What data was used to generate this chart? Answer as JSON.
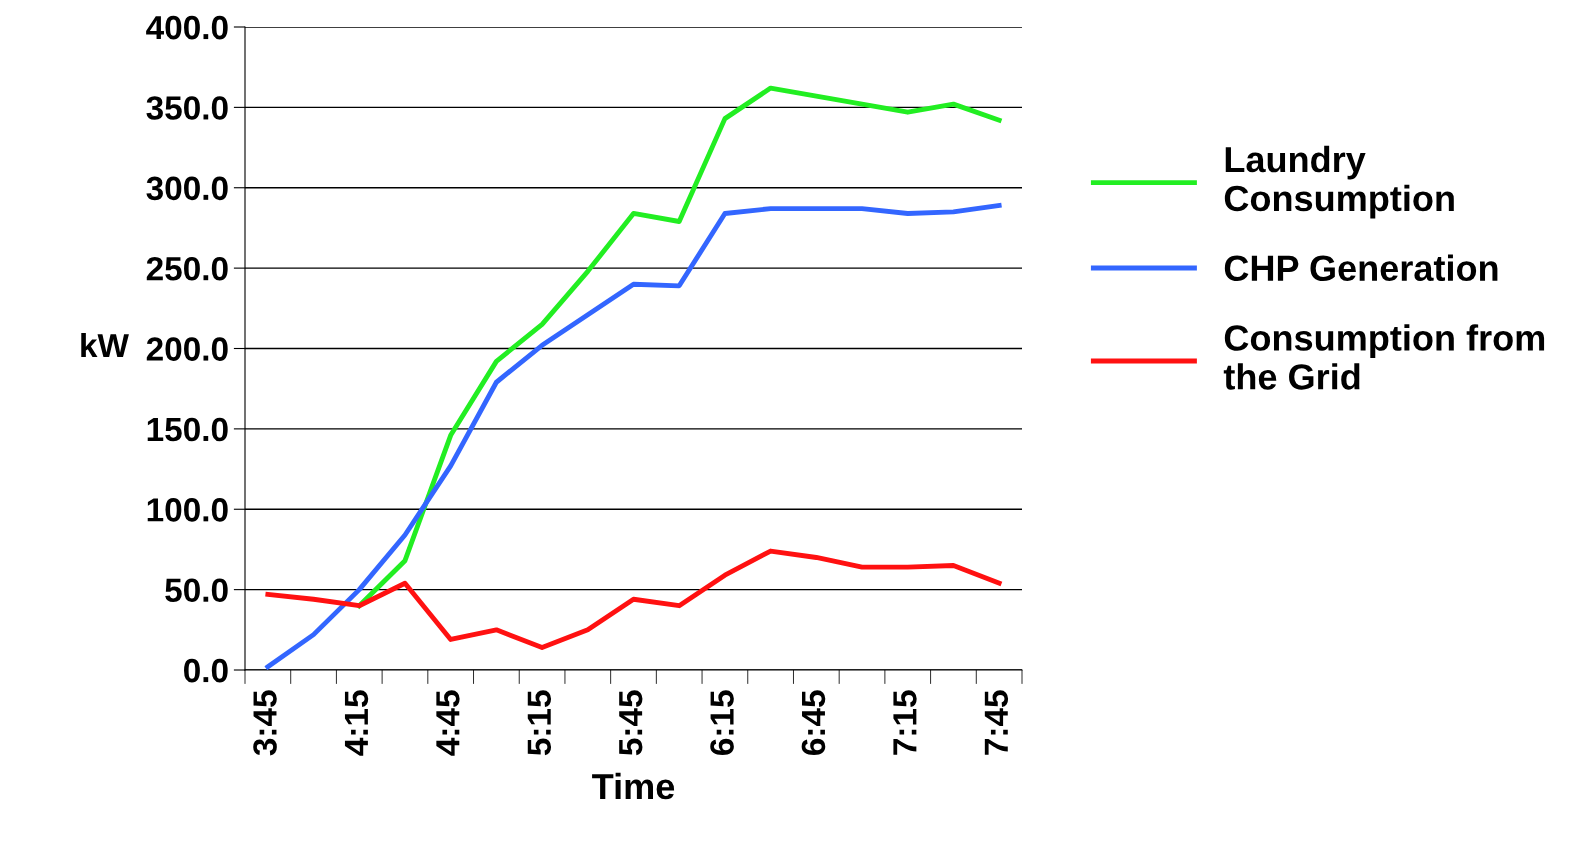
{
  "chart_data": {
    "type": "line",
    "xlabel": "Time",
    "ylabel": "kW",
    "categories": [
      "3:45",
      null,
      "4:15",
      null,
      "4:45",
      null,
      "5:15",
      null,
      "5:45",
      null,
      "6:15",
      null,
      "6:45",
      null,
      "7:15",
      null,
      "7:45"
    ],
    "series": [
      {
        "name": "Laundry\nConsumption",
        "color": "#22ee22",
        "values": [
          null,
          null,
          40,
          68,
          146,
          192,
          215,
          248,
          284,
          279,
          343,
          362,
          357,
          352,
          347,
          352,
          342
        ]
      },
      {
        "name": "CHP Generation",
        "color": "#3366ff",
        "values": [
          2,
          22,
          50,
          84,
          127,
          179,
          202,
          221,
          240,
          239,
          284,
          287,
          287,
          287,
          284,
          285,
          289
        ]
      },
      {
        "name": "Consumption from\nthe Grid",
        "color": "#ff1111",
        "values": [
          47,
          44,
          40,
          54,
          19,
          25,
          14,
          25,
          44,
          40,
          59,
          74,
          70,
          64,
          64,
          65,
          54
        ]
      }
    ],
    "ylim": [
      0,
      400
    ],
    "yticks": [
      {
        "value": 0,
        "label": "0.0"
      },
      {
        "value": 50,
        "label": "50.0"
      },
      {
        "value": 100,
        "label": "100.0"
      },
      {
        "value": 150,
        "label": "150.0"
      },
      {
        "value": 200,
        "label": "200.0"
      },
      {
        "value": 250,
        "label": "250.0"
      },
      {
        "value": 300,
        "label": "300.0"
      },
      {
        "value": 350,
        "label": "350.0"
      },
      {
        "value": 400,
        "label": "400.0"
      }
    ],
    "grid": "y",
    "legend": "right",
    "marker": "none",
    "line_style": "solid"
  }
}
